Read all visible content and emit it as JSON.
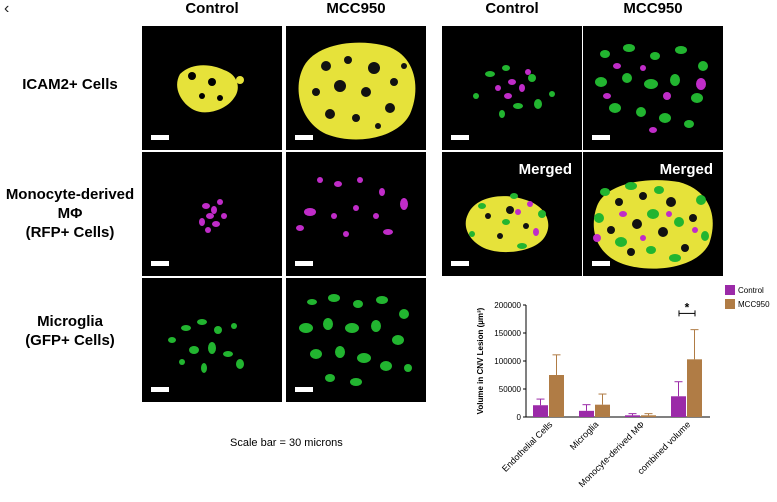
{
  "nav": {
    "back_glyph": "‹"
  },
  "figure": {
    "left_columns": [
      "Control",
      "MCC950"
    ],
    "right_columns": [
      "Control",
      "MCC950"
    ],
    "rows": [
      {
        "label_lines": [
          "ICAM2+ Cells"
        ]
      },
      {
        "label_lines": [
          "Monocyte-derived",
          "MΦ",
          "(RFP+ Cells)"
        ]
      },
      {
        "label_lines": [
          "Microglia",
          "(GFP+ Cells)"
        ]
      }
    ],
    "merged_label": "Merged",
    "scale_caption": "Scale bar = 30 microns",
    "colors": {
      "yellow": "#e6e23a",
      "magenta": "#c02cc8",
      "green": "#22b530"
    }
  },
  "chart_data": {
    "type": "bar",
    "categories": [
      "Endothelial Cells",
      "Microglia",
      "Monocyte-derived MΦ",
      "combined volume"
    ],
    "series": [
      {
        "name": "Control",
        "color": "#9b2aa8",
        "values": [
          21000,
          11000,
          3000,
          37000
        ],
        "errors": [
          11000,
          11000,
          3000,
          26000
        ]
      },
      {
        "name": "MCC950",
        "color": "#b07c45",
        "values": [
          75000,
          22000,
          3000,
          103000
        ],
        "errors": [
          36000,
          19000,
          3000,
          53000
        ]
      }
    ],
    "ylabel": "Volume in CNV Lesion (µm³)",
    "ylim": [
      0,
      200000
    ],
    "yticks": [
      "0",
      "50000",
      "100000",
      "150000",
      "200000"
    ],
    "legend_position": "top-right",
    "annotation": "*"
  }
}
